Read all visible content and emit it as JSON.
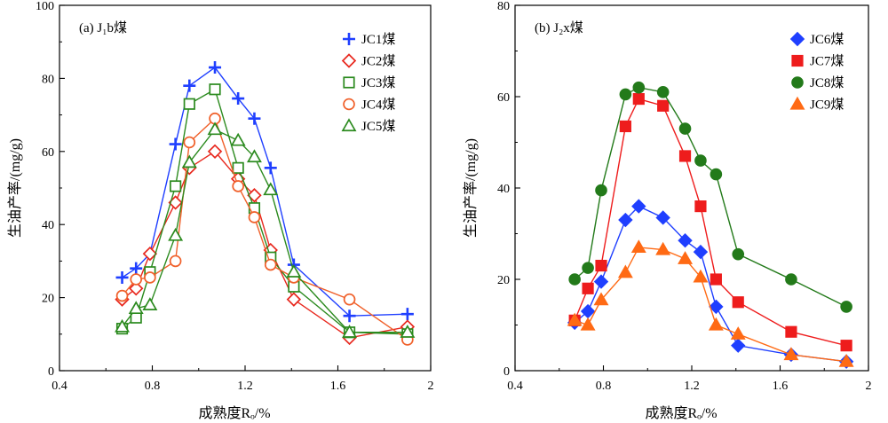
{
  "chart_data": [
    {
      "type": "line",
      "panel_label": "(a) J₁b煤",
      "xlabel": "成熟度Rₒ/%",
      "ylabel": "生油产率/(mg/g)",
      "xlim": [
        0.4,
        2.0
      ],
      "ylim": [
        0,
        100
      ],
      "xticks": [
        "0.4",
        "0.8",
        "1.2",
        "1.6",
        "2"
      ],
      "yticks": [
        "0",
        "20",
        "40",
        "60",
        "80",
        "100"
      ],
      "legend_position": "top-right",
      "series": [
        {
          "name": "JC1煤",
          "color": "#1f3fff",
          "marker": "plus",
          "x": [
            0.67,
            0.73,
            0.79,
            0.9,
            0.96,
            1.07,
            1.17,
            1.24,
            1.31,
            1.41,
            1.65,
            1.9
          ],
          "y": [
            25.5,
            28,
            32,
            62,
            78,
            83,
            74.5,
            69,
            55.5,
            29,
            15,
            15.5
          ]
        },
        {
          "name": "JC2煤",
          "color": "#e8271d",
          "marker": "diamond",
          "x": [
            0.67,
            0.73,
            0.79,
            0.9,
            0.96,
            1.07,
            1.17,
            1.24,
            1.31,
            1.41,
            1.65,
            1.9
          ],
          "y": [
            19.5,
            22.5,
            32,
            46,
            55.5,
            60,
            52.5,
            48,
            33,
            19.5,
            9,
            12
          ]
        },
        {
          "name": "JC3煤",
          "color": "#2b8a1e",
          "marker": "square",
          "x": [
            0.67,
            0.73,
            0.79,
            0.9,
            0.96,
            1.07,
            1.17,
            1.24,
            1.31,
            1.41,
            1.65,
            1.9
          ],
          "y": [
            11.5,
            14.5,
            27,
            50.5,
            73,
            77,
            55.5,
            44.5,
            31,
            23,
            10.5,
            10
          ]
        },
        {
          "name": "JC4煤",
          "color": "#f0602a",
          "marker": "circle",
          "x": [
            0.67,
            0.73,
            0.79,
            0.9,
            0.96,
            1.07,
            1.17,
            1.24,
            1.31,
            1.41,
            1.65,
            1.9
          ],
          "y": [
            20.5,
            25,
            25.5,
            30,
            62.5,
            69,
            50.5,
            42,
            29,
            25.5,
            19.5,
            8.5
          ]
        },
        {
          "name": "JC5煤",
          "color": "#2b8a1e",
          "marker": "triangle",
          "x": [
            0.67,
            0.73,
            0.79,
            0.9,
            0.96,
            1.07,
            1.17,
            1.24,
            1.31,
            1.41,
            1.65,
            1.9
          ],
          "y": [
            12,
            17,
            18,
            37,
            57,
            66,
            63,
            58.5,
            49.5,
            27,
            10.5,
            10.5
          ]
        }
      ]
    },
    {
      "type": "line",
      "panel_label": "(b) J₂x煤",
      "xlabel": "成熟度Rₒ/%",
      "ylabel": "生油产率/(mg/g)",
      "xlim": [
        0.4,
        2.0
      ],
      "ylim": [
        0,
        80
      ],
      "xticks": [
        "0.4",
        "0.8",
        "1.2",
        "1.6",
        "2"
      ],
      "yticks": [
        "0",
        "20",
        "40",
        "60",
        "80"
      ],
      "legend_position": "top-right",
      "series": [
        {
          "name": "JC6煤",
          "color": "#1f3fff",
          "marker": "diamond-filled",
          "x": [
            0.67,
            0.73,
            0.79,
            0.9,
            0.96,
            1.07,
            1.17,
            1.24,
            1.31,
            1.41,
            1.65,
            1.9
          ],
          "y": [
            10.5,
            13,
            19.5,
            33,
            36,
            33.5,
            28.5,
            26,
            14,
            5.5,
            3.5,
            2
          ]
        },
        {
          "name": "JC7煤",
          "color": "#ee1c1c",
          "marker": "square-filled",
          "x": [
            0.67,
            0.73,
            0.79,
            0.9,
            0.96,
            1.07,
            1.17,
            1.24,
            1.31,
            1.41,
            1.65,
            1.9
          ],
          "y": [
            11,
            18,
            23,
            53.5,
            59.5,
            58,
            47,
            36,
            20,
            15,
            8.5,
            5.5
          ]
        },
        {
          "name": "JC8煤",
          "color": "#237a1a",
          "marker": "circle-filled",
          "x": [
            0.67,
            0.73,
            0.79,
            0.9,
            0.96,
            1.07,
            1.17,
            1.24,
            1.31,
            1.41,
            1.65,
            1.9
          ],
          "y": [
            20,
            22.5,
            39.5,
            60.5,
            62,
            61,
            53,
            46,
            43,
            25.5,
            20,
            14
          ]
        },
        {
          "name": "JC9煤",
          "color": "#ff6a14",
          "marker": "triangle-filled",
          "x": [
            0.67,
            0.73,
            0.79,
            0.9,
            0.96,
            1.07,
            1.17,
            1.24,
            1.31,
            1.41,
            1.65,
            1.9
          ],
          "y": [
            11,
            10,
            15.5,
            21.5,
            27,
            26.5,
            24.5,
            20.5,
            10,
            8,
            3.5,
            2
          ]
        }
      ]
    }
  ]
}
